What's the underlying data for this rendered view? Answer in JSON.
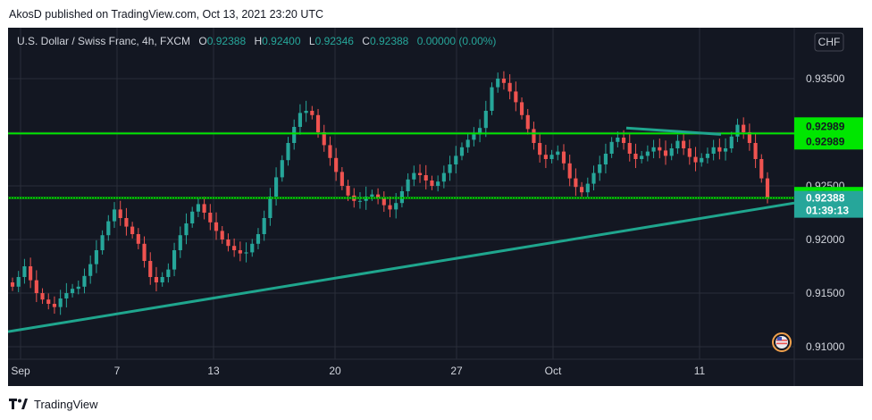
{
  "header": {
    "publisher_line": "AkosD published on TradingView.com, Oct 13, 2021 23:20 UTC"
  },
  "footer": {
    "brand": "TradingView"
  },
  "legend": {
    "symbol": "U.S. Dollar / Swiss Franc, 4h, FXCM",
    "o_label": "O",
    "o_value": "0.92388",
    "h_label": "H",
    "h_value": "0.92400",
    "l_label": "L",
    "l_value": "0.92346",
    "c_label": "C",
    "c_value": "0.92388",
    "change": "0.00000 (0.00%)"
  },
  "currency_button": "CHF",
  "price_tags": {
    "resistance_1": "0.92989",
    "resistance_2": "0.92989",
    "support": "0.92400",
    "last_price": "0.92388",
    "countdown": "01:39:13"
  },
  "colors": {
    "up": "#26a69a",
    "down": "#ef5350",
    "level": "#00e600",
    "trendline": "#1fa68e",
    "background": "#131722",
    "grid": "#2a2e39"
  },
  "chart_data": {
    "type": "candlestick",
    "symbol": "USD/CHF",
    "timeframe": "4h",
    "x_tick_labels": [
      "Sep",
      "7",
      "13",
      "20",
      "27",
      "Oct",
      "11"
    ],
    "y_tick_labels": [
      "0.93500",
      "0.93000",
      "0.92500",
      "0.92000",
      "0.91500",
      "0.91000"
    ],
    "ylim": [
      0.9085,
      0.9375
    ],
    "horizontal_levels": [
      0.92989,
      0.924
    ],
    "trendlines": [
      {
        "name": "ascending support",
        "from": {
          "x": "Sep 1",
          "y": 0.9114
        },
        "to": {
          "x": "Oct 14",
          "y": 0.9234
        }
      },
      {
        "name": "descending top",
        "from": {
          "x": "Oct 6",
          "y": 0.9304
        },
        "to": {
          "x": "Oct 11",
          "y": 0.9298
        }
      }
    ],
    "last_close": 0.92388,
    "closes": [
      0.9156,
      0.9165,
      0.9175,
      0.9162,
      0.915,
      0.9144,
      0.914,
      0.9137,
      0.9145,
      0.915,
      0.9154,
      0.9156,
      0.9166,
      0.9177,
      0.919,
      0.9204,
      0.9217,
      0.9228,
      0.922,
      0.9212,
      0.9205,
      0.9196,
      0.918,
      0.9165,
      0.916,
      0.9165,
      0.9172,
      0.919,
      0.9204,
      0.9215,
      0.9226,
      0.9233,
      0.9225,
      0.9216,
      0.9208,
      0.92,
      0.9194,
      0.919,
      0.9187,
      0.9188,
      0.9196,
      0.9205,
      0.922,
      0.924,
      0.9258,
      0.9274,
      0.929,
      0.9305,
      0.9318,
      0.932,
      0.9316,
      0.93,
      0.9288,
      0.9276,
      0.9263,
      0.925,
      0.9241,
      0.9236,
      0.9236,
      0.924,
      0.9242,
      0.9238,
      0.9232,
      0.9228,
      0.9234,
      0.9245,
      0.9256,
      0.9262,
      0.926,
      0.9255,
      0.925,
      0.9254,
      0.9262,
      0.927,
      0.9278,
      0.9286,
      0.9293,
      0.9298,
      0.9304,
      0.932,
      0.9342,
      0.935,
      0.9346,
      0.9338,
      0.9328,
      0.9316,
      0.9303,
      0.929,
      0.9279,
      0.9275,
      0.9279,
      0.9282,
      0.9271,
      0.9257,
      0.9249,
      0.9244,
      0.9252,
      0.9262,
      0.927,
      0.928,
      0.9291,
      0.9295,
      0.929,
      0.928,
      0.9275,
      0.9278,
      0.9282,
      0.9286,
      0.9283,
      0.9278,
      0.9285,
      0.9292,
      0.9285,
      0.9277,
      0.9272,
      0.9276,
      0.928,
      0.9286,
      0.9282,
      0.9285,
      0.9296,
      0.9307,
      0.93,
      0.929,
      0.9275,
      0.9257,
      0.92388
    ]
  }
}
